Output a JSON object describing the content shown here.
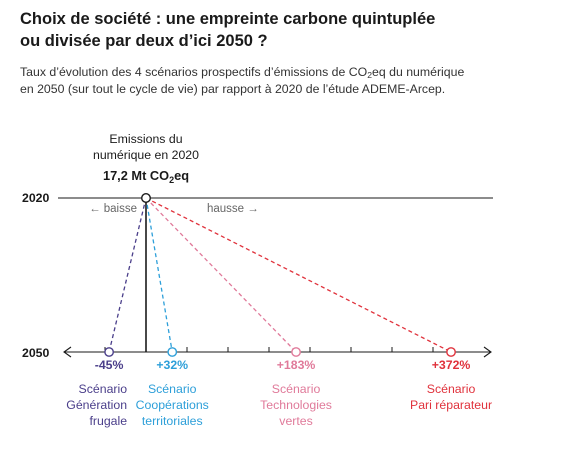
{
  "title_line1": "Choix de société : une empreinte carbone quintuplée",
  "title_line2": "ou divisée par deux d’ici 2050 ?",
  "subtitle_pre": "Taux d’évolution des 4 scénarios prospectifs d’émissions de CO",
  "subtitle_sub": "2",
  "subtitle_post": "eq du numérique",
  "subtitle_line2": "en 2050 (sur tout le cycle de vie) par rapport à 2020 de l’étude ADEME-Arcep.",
  "reference": {
    "line1": "Emissions du",
    "line2": "numérique en 2020",
    "value": "17,2 Mt CO",
    "value_sub": "2",
    "value_post": "eq"
  },
  "baisse_label": "← baisse",
  "hausse_label": "hausse →",
  "chart_data": {
    "type": "scatter",
    "rows": [
      "2020",
      "2050"
    ],
    "xlabel": "",
    "ylabel": "",
    "xlim": [
      -75,
      400
    ],
    "reference_value_mt": 17.2,
    "tick_values": [
      -50,
      0,
      50,
      100,
      150,
      200,
      250,
      300,
      350
    ],
    "series": [
      {
        "name_lines": [
          "Scénario",
          "Génération",
          "frugale"
        ],
        "change_label": "-45%",
        "change": -45,
        "color": "#4a3e8a"
      },
      {
        "name_lines": [
          "Scénario",
          "Coopérations",
          "territoriales"
        ],
        "change_label": "+32%",
        "change": 32,
        "color": "#2d9fd9"
      },
      {
        "name_lines": [
          "Scénario",
          "Technologies",
          "vertes"
        ],
        "change_label": "+183%",
        "change": 183,
        "color": "#e07a9a"
      },
      {
        "name_lines": [
          "Scénario",
          "Pari réparateur"
        ],
        "change_label": "+372%",
        "change": 372,
        "color": "#e0323c"
      }
    ]
  }
}
